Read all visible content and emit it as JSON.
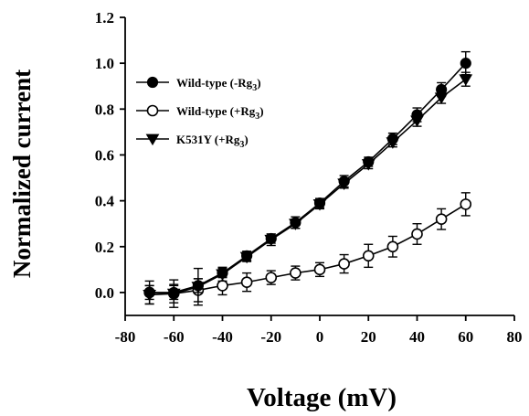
{
  "chart_data": {
    "type": "line",
    "title": "",
    "xlabel": "Voltage (mV)",
    "ylabel": "Normalized current",
    "xlim": [
      -80,
      80
    ],
    "ylim": [
      -0.1,
      1.2
    ],
    "xticks": [
      -80,
      -60,
      -40,
      -20,
      0,
      20,
      40,
      60,
      80
    ],
    "yticks": [
      0.0,
      0.2,
      0.4,
      0.6,
      0.8,
      1.0,
      1.2
    ],
    "x": [
      -70,
      -60,
      -50,
      -40,
      -30,
      -20,
      -10,
      0,
      10,
      20,
      30,
      40,
      50,
      60
    ],
    "series": [
      {
        "name": "Wild-type (-Rg",
        "name_subscript": "3",
        "name_suffix": ")",
        "marker": "filled-circle",
        "values": [
          0.0,
          0.0,
          0.03,
          0.085,
          0.16,
          0.235,
          0.305,
          0.39,
          0.485,
          0.57,
          0.67,
          0.775,
          0.885,
          1.0
        ],
        "errors": [
          0.03,
          0.03,
          0.03,
          0.02,
          0.02,
          0.02,
          0.025,
          0.02,
          0.025,
          0.02,
          0.025,
          0.03,
          0.03,
          0.05
        ]
      },
      {
        "name": "Wild-type (+Rg",
        "name_subscript": "3",
        "name_suffix": ")",
        "marker": "open-circle",
        "values": [
          0.0,
          -0.005,
          0.01,
          0.03,
          0.045,
          0.065,
          0.085,
          0.1,
          0.125,
          0.16,
          0.2,
          0.255,
          0.32,
          0.385
        ],
        "errors": [
          0.05,
          0.06,
          0.05,
          0.04,
          0.04,
          0.03,
          0.03,
          0.03,
          0.04,
          0.05,
          0.045,
          0.045,
          0.045,
          0.05
        ]
      },
      {
        "name": "K531Y (+Rg",
        "name_subscript": "3",
        "name_suffix": ")",
        "marker": "filled-triangle-down",
        "values": [
          -0.01,
          -0.005,
          0.025,
          0.08,
          0.155,
          0.23,
          0.3,
          0.385,
          0.475,
          0.56,
          0.655,
          0.75,
          0.85,
          0.93
        ],
        "errors": [
          0.04,
          0.04,
          0.08,
          0.03,
          0.02,
          0.025,
          0.02,
          0.02,
          0.02,
          0.02,
          0.02,
          0.025,
          0.025,
          0.03
        ]
      }
    ],
    "legend_position": "top-left",
    "grid": false
  }
}
